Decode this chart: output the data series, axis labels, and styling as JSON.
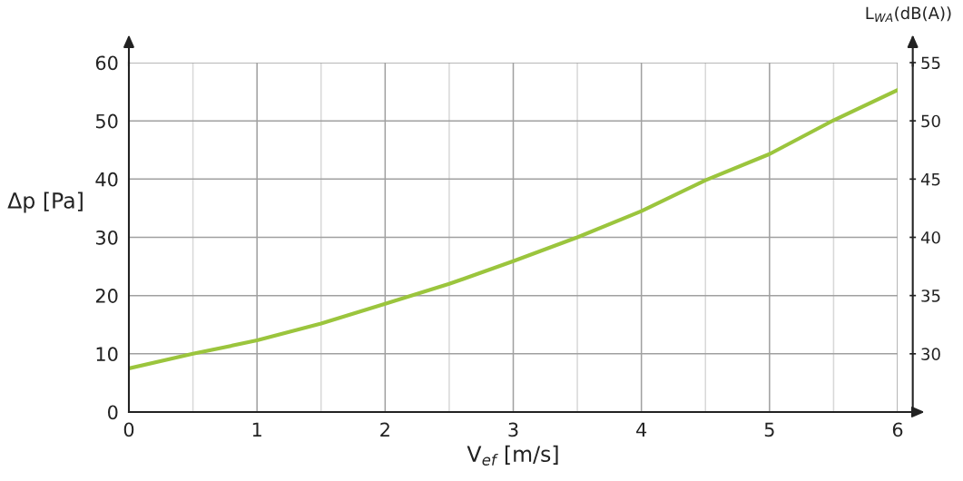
{
  "chart_data": {
    "type": "line",
    "xlabel": "V$_{ef}$ [m/s]",
    "ylabel": "Δp [Pa]",
    "y2label": "L$_{WA}$(dB(A))",
    "x": [
      0,
      0.5,
      1,
      1.5,
      2,
      2.5,
      3,
      3.5,
      4,
      4.5,
      5,
      5.5,
      6
    ],
    "series": [
      {
        "color": "#9bc53d",
        "values": [
          7.5,
          10,
          12.3,
          15.2,
          18.6,
          22.0,
          25.9,
          30.0,
          34.5,
          39.8,
          44.3,
          50.1,
          55.3
        ]
      }
    ],
    "xlim": [
      0,
      6
    ],
    "xticks": [
      0,
      {
        "value": 0.5,
        "label": null
      },
      1,
      {
        "value": 1.5,
        "label": null
      },
      2,
      {
        "value": 2.5,
        "label": null
      },
      3,
      {
        "value": 3.5,
        "label": null
      },
      4,
      {
        "value": 4.5,
        "label": null
      },
      5,
      {
        "value": 5.5,
        "label": null
      },
      6
    ],
    "ylim": [
      0,
      60
    ],
    "yticks": [
      0,
      10,
      20,
      30,
      40,
      50,
      60
    ],
    "y2lim": [
      25,
      55
    ],
    "y2ticks": [
      30,
      35,
      40,
      45,
      50,
      55
    ],
    "grid": true,
    "marker": "none",
    "line_style": "solid",
    "legend": false
  }
}
